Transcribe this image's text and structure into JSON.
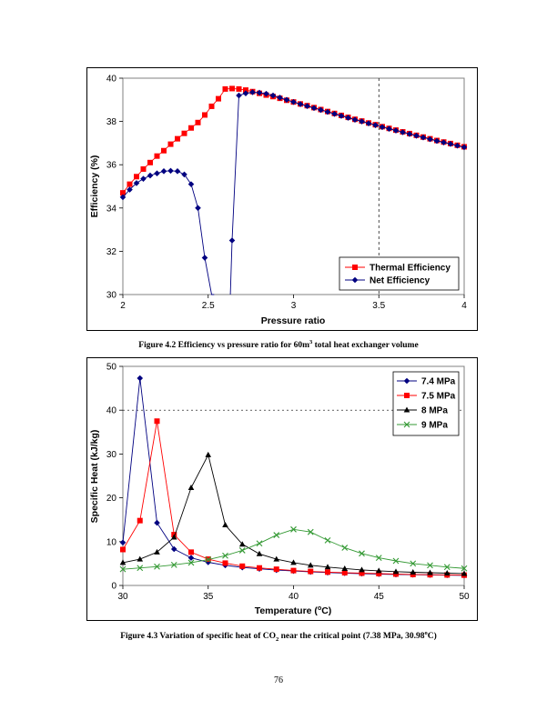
{
  "page_number": "76",
  "figure1": {
    "caption_prefix": "Figure 4.2 Efficiency vs pressure ratio for 60m",
    "caption_sup": "3",
    "caption_suffix": " total heat exchanger volume",
    "chart_data": {
      "type": "line",
      "xlabel": "Pressure ratio",
      "ylabel": "Efficiency (%)",
      "xlim": [
        2,
        4
      ],
      "ylim": [
        30,
        40
      ],
      "xticks": [
        2,
        2.5,
        3,
        3.5,
        4
      ],
      "xtick_labels": [
        "2",
        "2.5",
        "3",
        "3.5",
        "4"
      ],
      "yticks": [
        30,
        32,
        34,
        36,
        38,
        40
      ],
      "ytick_labels": [
        "30",
        "32",
        "34",
        "36",
        "38",
        "40"
      ],
      "vline_x": 3.5,
      "legend_position": "bottom-right",
      "series": [
        {
          "name": "Thermal Efficiency",
          "color": "#ff0000",
          "marker": "square",
          "x": [
            2,
            2.04,
            2.08,
            2.12,
            2.16,
            2.2,
            2.24,
            2.28,
            2.32,
            2.36,
            2.4,
            2.44,
            2.48,
            2.52,
            2.56,
            2.6,
            2.64,
            2.68,
            2.72,
            2.76,
            2.8,
            2.84,
            2.88,
            2.92,
            2.96,
            3,
            3.04,
            3.08,
            3.12,
            3.16,
            3.2,
            3.24,
            3.28,
            3.32,
            3.36,
            3.4,
            3.44,
            3.48,
            3.52,
            3.56,
            3.6,
            3.64,
            3.68,
            3.72,
            3.76,
            3.8,
            3.84,
            3.88,
            3.92,
            3.96,
            4
          ],
          "y": [
            34.7,
            35.1,
            35.45,
            35.8,
            36.1,
            36.4,
            36.65,
            36.95,
            37.2,
            37.45,
            37.7,
            37.95,
            38.3,
            38.7,
            39.05,
            39.5,
            39.52,
            39.5,
            39.45,
            39.38,
            39.3,
            39.22,
            39.15,
            39.07,
            38.98,
            38.9,
            38.81,
            38.73,
            38.64,
            38.55,
            38.46,
            38.37,
            38.28,
            38.19,
            38.1,
            38.02,
            37.93,
            37.85,
            37.76,
            37.68,
            37.6,
            37.52,
            37.44,
            37.36,
            37.28,
            37.2,
            37.12,
            37.05,
            36.98,
            36.9,
            36.83
          ]
        },
        {
          "name": "Net Efficiency",
          "color": "#000080",
          "marker": "diamond",
          "segments": [
            {
              "x": [
                2,
                2.04,
                2.08,
                2.12,
                2.16,
                2.2,
                2.24,
                2.28,
                2.32,
                2.36,
                2.4,
                2.44,
                2.48,
                2.52,
                2.535
              ],
              "y": [
                34.5,
                34.85,
                35.15,
                35.35,
                35.5,
                35.6,
                35.7,
                35.72,
                35.7,
                35.55,
                35.1,
                34.0,
                31.7,
                30,
                30
              ]
            },
            {
              "x": [
                2.63,
                2.64,
                2.68,
                2.72,
                2.76,
                2.8,
                2.84,
                2.88,
                2.92,
                2.96,
                3,
                3.04,
                3.08,
                3.12,
                3.16,
                3.2,
                3.24,
                3.28,
                3.32,
                3.36,
                3.4,
                3.44,
                3.48,
                3.52,
                3.56,
                3.6,
                3.64,
                3.68,
                3.72,
                3.76,
                3.8,
                3.84,
                3.88,
                3.92,
                3.96,
                4
              ],
              "y": [
                30,
                32.5,
                39.2,
                39.3,
                39.35,
                39.33,
                39.28,
                39.2,
                39.1,
                39.0,
                38.9,
                38.8,
                38.71,
                38.62,
                38.53,
                38.44,
                38.35,
                38.26,
                38.17,
                38.08,
                38.0,
                37.91,
                37.83,
                37.74,
                37.66,
                37.58,
                37.5,
                37.42,
                37.34,
                37.26,
                37.18,
                37.1,
                37.03,
                36.96,
                36.88,
                36.81
              ]
            }
          ],
          "marker_x": [
            2,
            2.04,
            2.08,
            2.12,
            2.16,
            2.2,
            2.24,
            2.28,
            2.32,
            2.36,
            2.4,
            2.44,
            2.48,
            2.64,
            2.68,
            2.72,
            2.76,
            2.8,
            2.84,
            2.88,
            2.92,
            2.96,
            3,
            3.04,
            3.08,
            3.12,
            3.16,
            3.2,
            3.24,
            3.28,
            3.32,
            3.36,
            3.4,
            3.44,
            3.48,
            3.52,
            3.56,
            3.6,
            3.64,
            3.68,
            3.72,
            3.76,
            3.8,
            3.84,
            3.88,
            3.92,
            3.96,
            4
          ],
          "marker_y": [
            34.5,
            34.85,
            35.15,
            35.35,
            35.5,
            35.6,
            35.7,
            35.72,
            35.7,
            35.55,
            35.1,
            34.0,
            31.7,
            32.5,
            39.2,
            39.3,
            39.35,
            39.33,
            39.28,
            39.2,
            39.1,
            39.0,
            38.9,
            38.8,
            38.71,
            38.62,
            38.53,
            38.44,
            38.35,
            38.26,
            38.17,
            38.08,
            38.0,
            37.91,
            37.83,
            37.74,
            37.66,
            37.58,
            37.5,
            37.42,
            37.34,
            37.26,
            37.18,
            37.1,
            37.03,
            36.96,
            36.88,
            36.81
          ]
        }
      ]
    }
  },
  "figure2": {
    "caption_prefix": "Figure 4.3 Variation of specific heat of CO",
    "caption_sub": "2",
    "caption_mid": " near the critical point (7.38 MPa, 30.98",
    "caption_sup": "o",
    "caption_suffix": "C)",
    "chart_data": {
      "type": "line",
      "xlabel_prefix": "Temperature (",
      "xlabel_sup": "o",
      "xlabel_suffix": "C)",
      "ylabel": "Specific Heat (kJ/kg)",
      "xlim": [
        30,
        50
      ],
      "ylim": [
        0,
        50
      ],
      "xticks": [
        30,
        35,
        40,
        45,
        50
      ],
      "xtick_labels": [
        "30",
        "35",
        "40",
        "45",
        "50"
      ],
      "yticks": [
        0,
        10,
        20,
        30,
        40,
        50
      ],
      "ytick_labels": [
        "0",
        "10",
        "20",
        "30",
        "40",
        "50"
      ],
      "hline_y": 40,
      "legend_position": "top-right",
      "series": [
        {
          "name": "7.4 MPa",
          "color": "#000080",
          "marker": "diamond",
          "x": [
            30,
            31,
            32,
            33,
            34,
            35,
            36,
            37,
            38,
            39,
            40,
            41,
            42,
            43,
            44,
            45,
            46,
            47,
            48,
            49,
            50
          ],
          "y": [
            9.8,
            47.3,
            14.3,
            8.3,
            6.3,
            5.3,
            4.6,
            4.1,
            3.8,
            3.5,
            3.3,
            3.1,
            2.95,
            2.8,
            2.7,
            2.6,
            2.5,
            2.45,
            2.4,
            2.35,
            2.3
          ]
        },
        {
          "name": "7.5 MPa",
          "color": "#ff0000",
          "marker": "square",
          "x": [
            30,
            31,
            32,
            33,
            34,
            35,
            36,
            37,
            38,
            39,
            40,
            41,
            42,
            43,
            44,
            45,
            46,
            47,
            48,
            49,
            50
          ],
          "y": [
            8.2,
            14.8,
            37.5,
            11.6,
            7.6,
            6.0,
            5.1,
            4.4,
            4.0,
            3.7,
            3.4,
            3.2,
            3.05,
            2.9,
            2.8,
            2.7,
            2.6,
            2.5,
            2.45,
            2.4,
            2.35
          ]
        },
        {
          "name": "8 MPa",
          "color": "#000000",
          "marker": "triangle",
          "x": [
            30,
            31,
            32,
            33,
            34,
            35,
            36,
            37,
            38,
            39,
            40,
            41,
            42,
            43,
            44,
            45,
            46,
            47,
            48,
            49,
            50
          ],
          "y": [
            5.2,
            6.0,
            7.6,
            11.0,
            22.3,
            29.8,
            13.8,
            9.4,
            7.2,
            6.0,
            5.2,
            4.6,
            4.2,
            3.85,
            3.55,
            3.35,
            3.15,
            3.0,
            2.9,
            2.8,
            2.7
          ]
        },
        {
          "name": "9 MPa",
          "color": "#339933",
          "marker": "x",
          "x": [
            30,
            31,
            32,
            33,
            34,
            35,
            36,
            37,
            38,
            39,
            40,
            41,
            42,
            43,
            44,
            45,
            46,
            47,
            48,
            49,
            50
          ],
          "y": [
            3.7,
            4.0,
            4.3,
            4.7,
            5.2,
            5.9,
            6.8,
            8.0,
            9.6,
            11.5,
            12.8,
            12.2,
            10.3,
            8.6,
            7.3,
            6.3,
            5.6,
            5.0,
            4.6,
            4.2,
            3.9
          ]
        }
      ]
    }
  }
}
